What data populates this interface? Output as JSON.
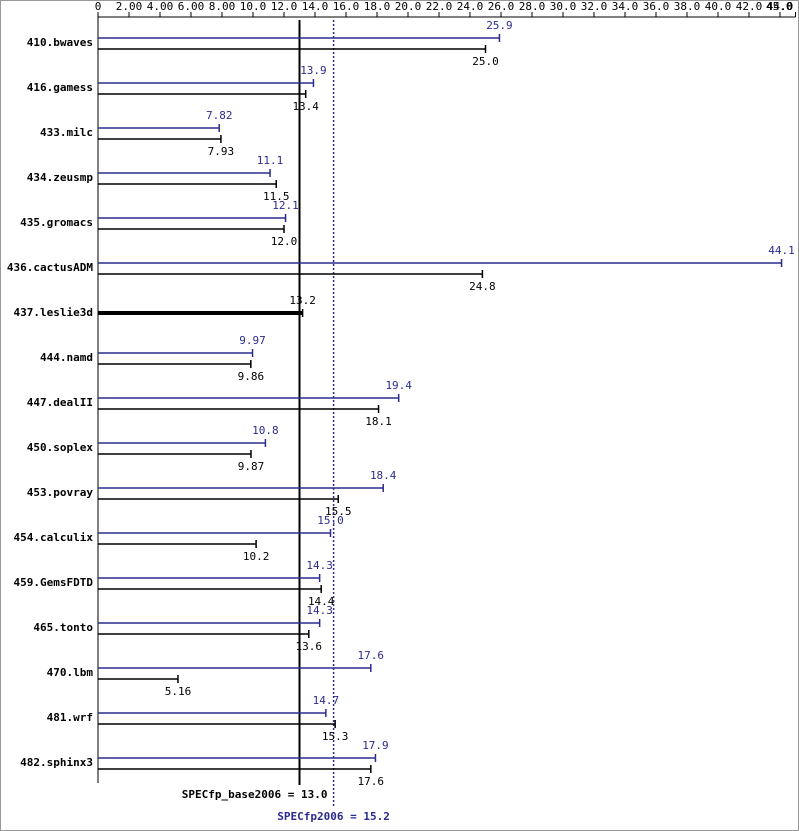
{
  "chart_data": {
    "type": "hbar",
    "categories": [
      "410.bwaves",
      "416.gamess",
      "433.milc",
      "434.zeusmp",
      "435.gromacs",
      "436.cactusADM",
      "437.leslie3d",
      "444.namd",
      "447.dealII",
      "450.soplex",
      "453.povray",
      "454.calculix",
      "459.GemsFDTD",
      "465.tonto",
      "470.lbm",
      "481.wrf",
      "482.sphinx3"
    ],
    "series": [
      {
        "color": "#2b2b8f",
        "values": [
          25.9,
          13.9,
          7.82,
          11.1,
          12.1,
          44.1,
          null,
          9.97,
          19.4,
          10.8,
          18.4,
          15.0,
          14.3,
          14.3,
          17.6,
          14.7,
          17.9
        ],
        "value_labels": [
          "25.9",
          "13.9",
          "7.82",
          "11.1",
          "12.1",
          "44.1",
          null,
          "9.97",
          "19.4",
          "10.8",
          "18.4",
          "15.0",
          "14.3",
          "14.3",
          "17.6",
          "14.7",
          "17.9"
        ]
      },
      {
        "color": "#000000",
        "values": [
          25.0,
          13.4,
          7.93,
          11.5,
          12.0,
          24.8,
          13.2,
          9.86,
          18.1,
          9.87,
          15.5,
          10.2,
          14.4,
          13.6,
          5.16,
          15.3,
          17.6
        ],
        "value_labels": [
          "25.0",
          "13.4",
          "7.93",
          "11.5",
          "12.0",
          "24.8",
          "13.2",
          "9.86",
          "18.1",
          "9.87",
          "15.5",
          "10.2",
          "14.4",
          "13.6",
          "5.16",
          "15.3",
          "17.6"
        ]
      }
    ],
    "xlim": [
      0,
      45
    ],
    "xticks": [
      0,
      {
        "value": 2,
        "label": "2.00"
      },
      {
        "value": 4,
        "label": "4.00"
      },
      {
        "value": 6,
        "label": "6.00"
      },
      {
        "value": 8,
        "label": "8.00"
      },
      {
        "value": 10,
        "label": "10.0"
      },
      {
        "value": 12,
        "label": "12.0"
      },
      {
        "value": 14,
        "label": "14.0"
      },
      {
        "value": 16,
        "label": "16.0"
      },
      {
        "value": 18,
        "label": "18.0"
      },
      {
        "value": 20,
        "label": "20.0"
      },
      {
        "value": 22,
        "label": "22.0"
      },
      {
        "value": 24,
        "label": "24.0"
      },
      {
        "value": 26,
        "label": "26.0"
      },
      {
        "value": 28,
        "label": "28.0"
      },
      {
        "value": 30,
        "label": "30.0"
      },
      {
        "value": 32,
        "label": "32.0"
      },
      {
        "value": 34,
        "label": "34.0"
      },
      {
        "value": 36,
        "label": "36.0"
      },
      {
        "value": 38,
        "label": "38.0"
      },
      {
        "value": 40,
        "label": "40.0"
      },
      {
        "value": 42,
        "label": "42.0"
      },
      {
        "value": 44,
        "label": "44.0"
      },
      {
        "value": 45,
        "label": "45.0"
      }
    ],
    "reference_lines": [
      {
        "value": 13.0,
        "label": "SPECfp_base2006 = 13.0",
        "color": "#000000",
        "style": "solid"
      },
      {
        "value": 15.2,
        "label": "SPECfp2006 = 15.2",
        "color": "#2b2b8f",
        "style": "dotted"
      }
    ]
  }
}
